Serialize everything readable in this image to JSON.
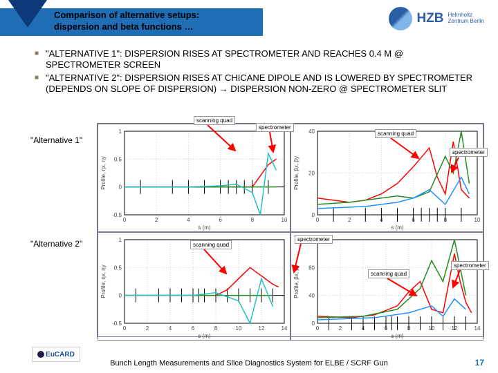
{
  "header": {
    "title_line1": "Comparison of alternative setups:",
    "title_line2": "dispersion and beta functions …",
    "logo_text": "HZB",
    "logo_sub1": "Helmholtz",
    "logo_sub2": "Zentrum Berlin"
  },
  "bullets": [
    "\"ALTERNATIVE 1\": DISPERSION RISES AT SPECTROMETER AND REACHES 0.4 M @ SPECTROMETER SCREEN",
    "\"ALTERNATIVE 2\": DISPERSION RISES AT CHICANE DIPOLE AND IS LOWERED BY SPECTROMETER (DEPENDS ON SLOPE OF DISPERSION) → DISPERSION NON-ZERO @ SPECTROMETER SLIT"
  ],
  "row_labels": {
    "alt1": "\"Alternative 1\"",
    "alt2": "\"Alternative 2\""
  },
  "callouts": {
    "scanning_quad": "scanning quad",
    "spectrometer": "spectrometer"
  },
  "charts": {
    "colors": {
      "bg": "#ffffff",
      "grid": "#cccccc",
      "axis": "#000000",
      "red": "#ff0000",
      "green": "#228b22",
      "blue": "#1e90ff",
      "cyan": "#20c0c8",
      "black": "#000000",
      "lightblue": "#99ccff"
    },
    "top_left": {
      "xlim": [
        0,
        10
      ],
      "ylim": [
        -0.5,
        1.0
      ],
      "xticks": [
        0,
        2,
        4,
        6,
        8,
        10
      ],
      "yticks": [
        -0.5,
        0,
        0.5,
        1.0
      ],
      "xlabel": "s (m)",
      "ylabel": "Profile, ηx, ηy",
      "series": [
        {
          "color": "#ff0000",
          "pts": [
            [
              0,
              0
            ],
            [
              3,
              0
            ],
            [
              5,
              0
            ],
            [
              6,
              0
            ],
            [
              7,
              0
            ],
            [
              8,
              0
            ],
            [
              8.5,
              0.2
            ],
            [
              9,
              0.4
            ],
            [
              9.5,
              0.5
            ]
          ]
        },
        {
          "color": "#228b22",
          "pts": [
            [
              0,
              0
            ],
            [
              3,
              0
            ],
            [
              5,
              0
            ],
            [
              6,
              0
            ],
            [
              7,
              0
            ],
            [
              8,
              0
            ],
            [
              9,
              0
            ],
            [
              9.5,
              0
            ]
          ]
        },
        {
          "color": "#20c0c8",
          "pts": [
            [
              0,
              0
            ],
            [
              4,
              0
            ],
            [
              6,
              0.02
            ],
            [
              7,
              0.05
            ],
            [
              8,
              -0.1
            ],
            [
              8.5,
              -0.5
            ],
            [
              9,
              0.6
            ],
            [
              9.5,
              0.3
            ]
          ]
        }
      ],
      "markers": [
        1,
        3,
        4,
        5,
        6,
        6.5,
        7,
        7.5,
        8,
        9
      ]
    },
    "top_right": {
      "xlim": [
        0,
        10
      ],
      "ylim": [
        0,
        40
      ],
      "xticks": [
        0,
        2,
        4,
        6,
        8,
        10
      ],
      "yticks": [
        0,
        20,
        40
      ],
      "xlabel": "s (m)",
      "ylabel": "Profile, βx, βy",
      "series": [
        {
          "color": "#ff0000",
          "pts": [
            [
              0,
              8
            ],
            [
              2,
              6
            ],
            [
              3,
              7
            ],
            [
              4,
              10
            ],
            [
              5,
              15
            ],
            [
              6,
              23
            ],
            [
              7,
              32
            ],
            [
              7.5,
              18
            ],
            [
              8,
              10
            ],
            [
              8.5,
              35
            ],
            [
              9,
              12
            ],
            [
              9.5,
              8
            ]
          ]
        },
        {
          "color": "#228b22",
          "pts": [
            [
              0,
              5
            ],
            [
              2,
              6
            ],
            [
              4,
              8
            ],
            [
              5,
              9
            ],
            [
              6,
              8
            ],
            [
              7,
              11
            ],
            [
              8,
              28
            ],
            [
              8.5,
              20
            ],
            [
              9,
              40
            ],
            [
              9.5,
              15
            ]
          ]
        },
        {
          "color": "#1e90ff",
          "pts": [
            [
              0,
              3
            ],
            [
              3,
              4
            ],
            [
              5,
              6
            ],
            [
              6,
              8
            ],
            [
              7,
              12
            ],
            [
              8,
              5
            ],
            [
              9,
              18
            ],
            [
              9.5,
              10
            ]
          ]
        }
      ],
      "markers": [
        1,
        3,
        4,
        5,
        6,
        6.5,
        7,
        7.5,
        8,
        9
      ]
    },
    "bottom_left": {
      "xlim": [
        0,
        14
      ],
      "ylim": [
        -0.5,
        1.0
      ],
      "xticks": [
        0,
        2,
        4,
        6,
        8,
        10,
        12,
        14
      ],
      "yticks": [
        -0.5,
        0,
        0.5,
        1.0
      ],
      "xlabel": "s (m)",
      "ylabel": "Profile, ηx, ηy",
      "series": [
        {
          "color": "#ff0000",
          "pts": [
            [
              0,
              0
            ],
            [
              4,
              0
            ],
            [
              6,
              0
            ],
            [
              8,
              0
            ],
            [
              9,
              0.1
            ],
            [
              10,
              0.3
            ],
            [
              11,
              0.5
            ],
            [
              12,
              0.35
            ],
            [
              13,
              0.2
            ],
            [
              13.5,
              0.15
            ]
          ]
        },
        {
          "color": "#228b22",
          "pts": [
            [
              0,
              0
            ],
            [
              6,
              0
            ],
            [
              10,
              0
            ],
            [
              13,
              0
            ]
          ]
        },
        {
          "color": "#20c0c8",
          "pts": [
            [
              0,
              0
            ],
            [
              6,
              0
            ],
            [
              8,
              0.05
            ],
            [
              10,
              -0.1
            ],
            [
              11,
              -0.5
            ],
            [
              12,
              0.3
            ],
            [
              13,
              -0.2
            ]
          ]
        }
      ],
      "markers": [
        1,
        3,
        4,
        5,
        6,
        6.5,
        7,
        8,
        9,
        10,
        11,
        12,
        13
      ]
    },
    "bottom_right": {
      "xlim": [
        0,
        14
      ],
      "ylim": [
        0,
        120
      ],
      "xticks": [
        0,
        2,
        4,
        6,
        8,
        10,
        12,
        14
      ],
      "yticks": [
        0,
        40,
        80,
        120
      ],
      "xlabel": "s (m)",
      "ylabel": "Profile, βx, βy",
      "series": [
        {
          "color": "#ff0000",
          "pts": [
            [
              0,
              10
            ],
            [
              3,
              8
            ],
            [
              5,
              12
            ],
            [
              7,
              25
            ],
            [
              8,
              45
            ],
            [
              9,
              60
            ],
            [
              10,
              20
            ],
            [
              11,
              15
            ],
            [
              12,
              100
            ],
            [
              12.5,
              60
            ],
            [
              13,
              30
            ],
            [
              13.5,
              15
            ]
          ]
        },
        {
          "color": "#228b22",
          "pts": [
            [
              0,
              8
            ],
            [
              4,
              10
            ],
            [
              7,
              20
            ],
            [
              9,
              50
            ],
            [
              10,
              90
            ],
            [
              11,
              60
            ],
            [
              12,
              120
            ],
            [
              13,
              40
            ]
          ]
        },
        {
          "color": "#1e90ff",
          "pts": [
            [
              0,
              5
            ],
            [
              5,
              8
            ],
            [
              8,
              15
            ],
            [
              10,
              25
            ],
            [
              11,
              10
            ],
            [
              12,
              35
            ],
            [
              13,
              20
            ]
          ]
        }
      ],
      "markers": [
        1,
        3,
        4,
        5,
        6,
        6.5,
        7,
        8,
        9,
        10,
        11,
        12,
        13
      ]
    }
  },
  "footer": {
    "text": "Bunch Length Measurements and Slice Diagnostics System for ELBE / SCRF Gun",
    "page": "17",
    "eucard": "EuCARD"
  }
}
